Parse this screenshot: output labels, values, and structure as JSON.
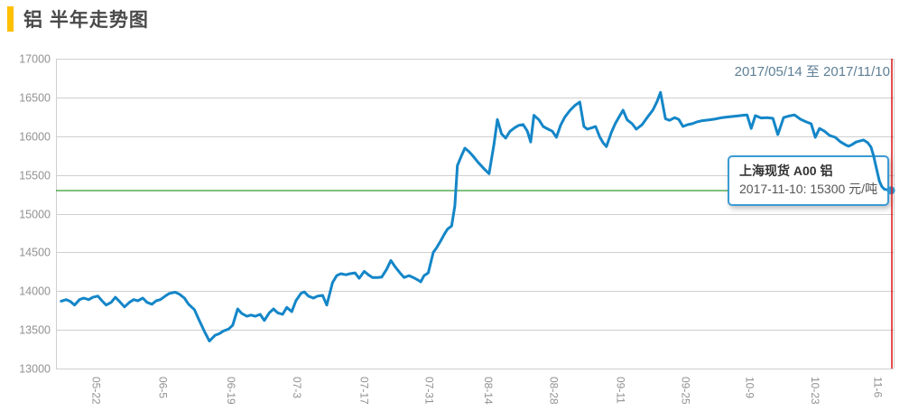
{
  "header": {
    "title": "铝 半年走势图"
  },
  "chart": {
    "date_range_label": "2017/05/14 至 2017/11/10",
    "tooltip": {
      "title": "上海现货 A00 铝",
      "value_line": "2017-11-10: 15300 元/吨"
    }
  },
  "colors": {
    "accent_yellow": "#FFC000",
    "line_blue": "#1486C8",
    "dot_blue": "#2E97D3",
    "reference_green": "#008000",
    "marker_red": "#DC1414",
    "grid": "#cfcfcf",
    "axis_text": "#919191",
    "date_text": "#5E7F95"
  },
  "chart_data": {
    "type": "line",
    "title": "铝 半年走势图",
    "series_name": "上海现货 A00 铝",
    "x_domain": [
      "2017-05-14",
      "2017-11-10"
    ],
    "x_unit": "percent_of_time_span",
    "ylabel": "元/吨",
    "ylim": [
      13000,
      17000
    ],
    "y_ticks": [
      13000,
      13500,
      14000,
      14500,
      15000,
      15500,
      16000,
      16500,
      17000
    ],
    "x_ticks": [
      {
        "label": "05-22",
        "pos": 4.4
      },
      {
        "label": "06-5",
        "pos": 12.4
      },
      {
        "label": "06-19",
        "pos": 20.6
      },
      {
        "label": "07-3",
        "pos": 28.5
      },
      {
        "label": "07-17",
        "pos": 36.6
      },
      {
        "label": "07-31",
        "pos": 44.4
      },
      {
        "label": "08-14",
        "pos": 51.5
      },
      {
        "label": "08-28",
        "pos": 59.4
      },
      {
        "label": "09-11",
        "pos": 67.4
      },
      {
        "label": "09-25",
        "pos": 75.2
      },
      {
        "label": "10-9",
        "pos": 82.9
      },
      {
        "label": "10-23",
        "pos": 90.8
      },
      {
        "label": "11-6",
        "pos": 98.3
      }
    ],
    "reference_line": {
      "value": 15300
    },
    "current_marker": {
      "date": "2017-11-10",
      "value": 15300,
      "pos": 99.9
    },
    "grid": true,
    "points": [
      [
        0.2,
        13870
      ],
      [
        0.8,
        13890
      ],
      [
        1.3,
        13865
      ],
      [
        1.8,
        13820
      ],
      [
        2.4,
        13890
      ],
      [
        2.9,
        13910
      ],
      [
        3.5,
        13890
      ],
      [
        4.0,
        13920
      ],
      [
        4.6,
        13935
      ],
      [
        5.1,
        13875
      ],
      [
        5.6,
        13820
      ],
      [
        6.2,
        13855
      ],
      [
        6.7,
        13920
      ],
      [
        7.3,
        13855
      ],
      [
        7.8,
        13795
      ],
      [
        8.4,
        13855
      ],
      [
        8.9,
        13890
      ],
      [
        9.4,
        13875
      ],
      [
        10.0,
        13910
      ],
      [
        10.5,
        13855
      ],
      [
        11.1,
        13830
      ],
      [
        11.6,
        13875
      ],
      [
        12.1,
        13890
      ],
      [
        12.7,
        13935
      ],
      [
        13.2,
        13970
      ],
      [
        13.9,
        13985
      ],
      [
        14.4,
        13960
      ],
      [
        15.0,
        13910
      ],
      [
        15.5,
        13830
      ],
      [
        16.2,
        13760
      ],
      [
        16.7,
        13640
      ],
      [
        17.4,
        13480
      ],
      [
        18.0,
        13355
      ],
      [
        18.7,
        13430
      ],
      [
        19.2,
        13450
      ],
      [
        19.7,
        13485
      ],
      [
        20.3,
        13510
      ],
      [
        20.8,
        13560
      ],
      [
        21.4,
        13770
      ],
      [
        21.9,
        13710
      ],
      [
        22.5,
        13675
      ],
      [
        23.0,
        13690
      ],
      [
        23.5,
        13675
      ],
      [
        24.1,
        13700
      ],
      [
        24.6,
        13620
      ],
      [
        25.2,
        13720
      ],
      [
        25.7,
        13770
      ],
      [
        26.2,
        13720
      ],
      [
        26.8,
        13700
      ],
      [
        27.3,
        13790
      ],
      [
        27.9,
        13735
      ],
      [
        28.4,
        13875
      ],
      [
        29.0,
        13970
      ],
      [
        29.4,
        13990
      ],
      [
        29.9,
        13935
      ],
      [
        30.5,
        13910
      ],
      [
        31.0,
        13935
      ],
      [
        31.6,
        13945
      ],
      [
        32.1,
        13820
      ],
      [
        32.8,
        14110
      ],
      [
        33.3,
        14200
      ],
      [
        33.8,
        14225
      ],
      [
        34.4,
        14210
      ],
      [
        34.9,
        14225
      ],
      [
        35.5,
        14235
      ],
      [
        36.0,
        14165
      ],
      [
        36.6,
        14255
      ],
      [
        37.1,
        14210
      ],
      [
        37.6,
        14175
      ],
      [
        38.2,
        14175
      ],
      [
        38.7,
        14180
      ],
      [
        39.3,
        14280
      ],
      [
        39.8,
        14395
      ],
      [
        40.3,
        14315
      ],
      [
        40.9,
        14235
      ],
      [
        41.4,
        14175
      ],
      [
        42.0,
        14200
      ],
      [
        42.5,
        14175
      ],
      [
        43.1,
        14140
      ],
      [
        43.4,
        14120
      ],
      [
        43.8,
        14200
      ],
      [
        44.3,
        14235
      ],
      [
        44.9,
        14500
      ],
      [
        45.3,
        14560
      ],
      [
        45.8,
        14650
      ],
      [
        46.2,
        14730
      ],
      [
        46.6,
        14800
      ],
      [
        47.1,
        14840
      ],
      [
        47.5,
        15100
      ],
      [
        47.8,
        15620
      ],
      [
        48.3,
        15750
      ],
      [
        48.7,
        15845
      ],
      [
        49.2,
        15800
      ],
      [
        49.7,
        15740
      ],
      [
        50.3,
        15660
      ],
      [
        51.0,
        15580
      ],
      [
        51.6,
        15515
      ],
      [
        52.2,
        15900
      ],
      [
        52.6,
        16215
      ],
      [
        53.1,
        16030
      ],
      [
        53.6,
        15975
      ],
      [
        54.1,
        16060
      ],
      [
        54.7,
        16110
      ],
      [
        55.2,
        16140
      ],
      [
        55.7,
        16150
      ],
      [
        56.2,
        16065
      ],
      [
        56.6,
        15925
      ],
      [
        57.0,
        16270
      ],
      [
        57.6,
        16210
      ],
      [
        58.1,
        16125
      ],
      [
        58.7,
        16090
      ],
      [
        59.2,
        16065
      ],
      [
        59.7,
        15985
      ],
      [
        60.2,
        16140
      ],
      [
        60.7,
        16245
      ],
      [
        61.3,
        16330
      ],
      [
        61.9,
        16395
      ],
      [
        62.5,
        16440
      ],
      [
        63.0,
        16125
      ],
      [
        63.4,
        16090
      ],
      [
        64.0,
        16110
      ],
      [
        64.4,
        16125
      ],
      [
        64.9,
        15990
      ],
      [
        65.3,
        15915
      ],
      [
        65.7,
        15865
      ],
      [
        66.3,
        16050
      ],
      [
        66.8,
        16170
      ],
      [
        67.4,
        16280
      ],
      [
        67.7,
        16335
      ],
      [
        68.2,
        16210
      ],
      [
        68.8,
        16160
      ],
      [
        69.3,
        16090
      ],
      [
        70.0,
        16150
      ],
      [
        70.6,
        16240
      ],
      [
        71.3,
        16340
      ],
      [
        71.8,
        16450
      ],
      [
        72.2,
        16565
      ],
      [
        72.8,
        16225
      ],
      [
        73.3,
        16205
      ],
      [
        73.9,
        16240
      ],
      [
        74.4,
        16215
      ],
      [
        74.9,
        16125
      ],
      [
        75.5,
        16150
      ],
      [
        76.0,
        16160
      ],
      [
        76.6,
        16185
      ],
      [
        77.2,
        16200
      ],
      [
        78.0,
        16210
      ],
      [
        78.7,
        16220
      ],
      [
        79.6,
        16240
      ],
      [
        80.5,
        16250
      ],
      [
        81.3,
        16260
      ],
      [
        82.1,
        16270
      ],
      [
        82.6,
        16275
      ],
      [
        83.1,
        16100
      ],
      [
        83.6,
        16265
      ],
      [
        84.3,
        16235
      ],
      [
        85.0,
        16240
      ],
      [
        85.7,
        16230
      ],
      [
        86.3,
        16020
      ],
      [
        87.0,
        16240
      ],
      [
        87.6,
        16260
      ],
      [
        88.3,
        16275
      ],
      [
        89.0,
        16220
      ],
      [
        89.7,
        16185
      ],
      [
        90.3,
        16160
      ],
      [
        90.8,
        15985
      ],
      [
        91.3,
        16100
      ],
      [
        91.9,
        16065
      ],
      [
        92.5,
        16010
      ],
      [
        93.2,
        15985
      ],
      [
        93.8,
        15930
      ],
      [
        94.4,
        15890
      ],
      [
        94.8,
        15870
      ],
      [
        95.2,
        15890
      ],
      [
        95.7,
        15925
      ],
      [
        96.2,
        15940
      ],
      [
        96.6,
        15950
      ],
      [
        97.1,
        15915
      ],
      [
        97.5,
        15860
      ],
      [
        97.8,
        15750
      ],
      [
        98.2,
        15560
      ],
      [
        98.5,
        15420
      ],
      [
        98.8,
        15350
      ],
      [
        99.1,
        15315
      ],
      [
        99.9,
        15300
      ]
    ]
  }
}
